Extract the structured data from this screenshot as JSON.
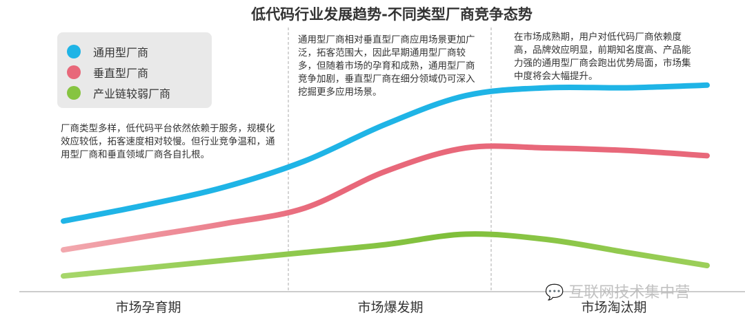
{
  "chart_data": {
    "type": "line",
    "title": "低代码行业发展趋势-不同类型厂商竞争态势",
    "categories": [
      "市场孕育期",
      "市场爆发期",
      "市场淘汰期"
    ],
    "x": [
      0,
      1,
      2,
      3,
      4,
      5,
      6,
      7,
      8
    ],
    "ylim": [
      0,
      100
    ],
    "grid": false,
    "legend_placement": "top-left",
    "series": [
      {
        "name": "通用型厂商",
        "color": "#1fb4e6",
        "values": [
          27,
          33,
          40,
          50,
          64,
          75,
          78,
          78,
          79
        ]
      },
      {
        "name": "垂直型厂商",
        "color": "#e8687a",
        "values": [
          16,
          21,
          26,
          32,
          46,
          55,
          55,
          54,
          52
        ]
      },
      {
        "name": "产业链较弱厂商",
        "color": "#86c441",
        "values": [
          6,
          9,
          12,
          15,
          18,
          22,
          20,
          15,
          10
        ]
      }
    ],
    "annotations": [
      "厂商类型多样，低代码平台依然依赖于服务，规模化效应较低，拓客速度相对较慢。但行业竞争温和，通用型厂商和垂直领域厂商各自扎根。",
      "通用型厂商相对垂直型厂商应用场景更加广泛，拓客范围大，因此早期通用型厂商较多，但随着市场的孕育和成熟，通用型厂商竞争加剧，垂直型厂商在细分领域仍可深入挖掘更多应用场景。",
      "在市场成熟期，用户对低代码厂商依赖度高，品牌效应明显，前期知名度高、产品能力强的通用型厂商会跑出优势局面，市场集中度将会大幅提升。"
    ]
  },
  "watermark": "互联网技术集中营"
}
